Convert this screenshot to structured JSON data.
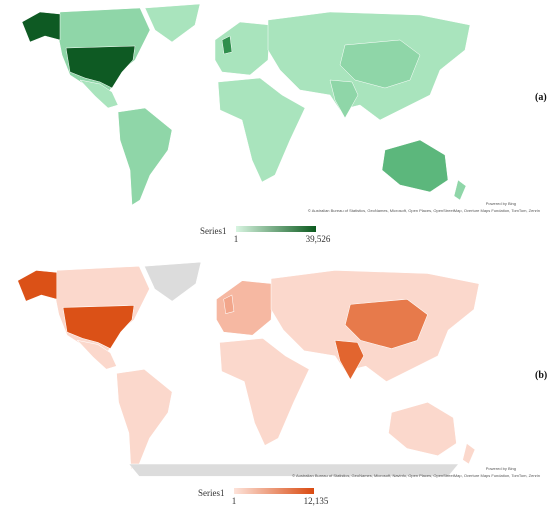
{
  "maps": [
    {
      "label": "(a)",
      "powered": "Powered by Bing",
      "attribution": "© Australian Bureau of Statistics, GeoNames, Microsoft, Open Places, OpenStreetMap, Overture Maps Fundation, TomTom, Zenrin",
      "legend": {
        "title": "Series1",
        "min": 1,
        "max": {
          "value": 39526,
          "label": "39,526"
        }
      }
    },
    {
      "label": "(b)",
      "powered": "Powered by Bing",
      "attribution": "© Australian Bureau of Statistics, GeoNames, Microsoft, Navinfo, Open Places, OpenStreetMap, Overture Maps Fundation, TomTom, Zenrin",
      "legend": {
        "title": "Series1",
        "min": 1,
        "max": {
          "value": 12135,
          "label": "12,135"
        }
      }
    }
  ]
}
